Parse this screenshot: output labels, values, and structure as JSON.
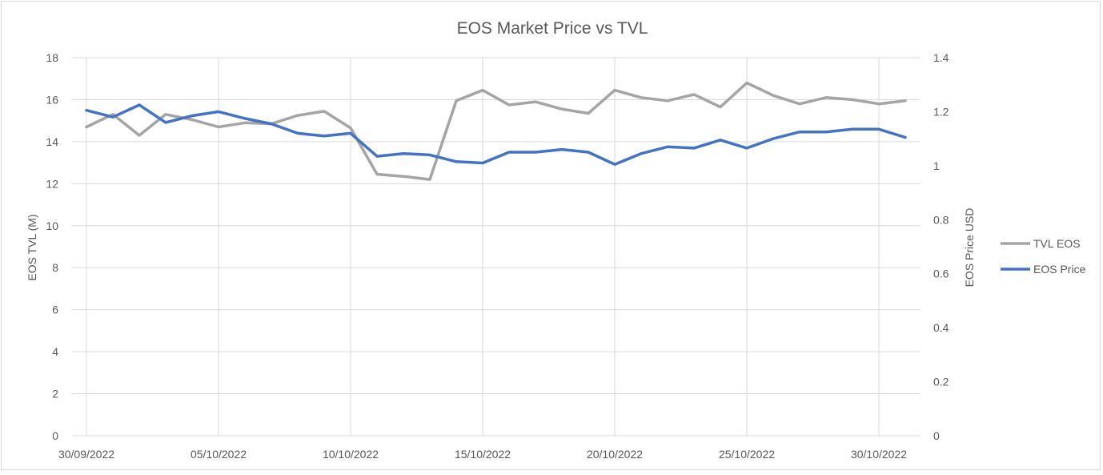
{
  "chart_data": {
    "type": "line",
    "title": "EOS Market Price vs TVL",
    "x_tick_labels": [
      "30/09/2022",
      "05/10/2022",
      "10/10/2022",
      "15/10/2022",
      "20/10/2022",
      "25/10/2022",
      "30/10/2022"
    ],
    "x_tick_dates": [
      "2022-09-30",
      "2022-10-05",
      "2022-10-10",
      "2022-10-15",
      "2022-10-20",
      "2022-10-25",
      "2022-10-30"
    ],
    "x_range": [
      "2022-09-30",
      "2022-10-31"
    ],
    "y_left": {
      "label": "EOS TVL (M)",
      "range": [
        0,
        18
      ],
      "ticks": [
        "0",
        "2",
        "4",
        "6",
        "8",
        "10",
        "12",
        "14",
        "16",
        "18"
      ]
    },
    "y_right": {
      "label": "EOS Price USD",
      "range": [
        0,
        1.4
      ],
      "ticks": [
        "0",
        "0.2",
        "0.4",
        "0.6",
        "0.8",
        "1",
        "1.2",
        "1.4"
      ]
    },
    "grid": true,
    "legend_position": "right",
    "series": [
      {
        "name": "TVL EOS",
        "axis": "left",
        "color": "#a5a5a5",
        "points": [
          {
            "date": "2022-09-30",
            "value": 14.7
          },
          {
            "date": "2022-10-01",
            "value": 15.3
          },
          {
            "date": "2022-10-02",
            "value": 14.3
          },
          {
            "date": "2022-10-03",
            "value": 15.3
          },
          {
            "date": "2022-10-04",
            "value": 15.05
          },
          {
            "date": "2022-10-05",
            "value": 14.7
          },
          {
            "date": "2022-10-06",
            "value": 14.9
          },
          {
            "date": "2022-10-07",
            "value": 14.85
          },
          {
            "date": "2022-10-08",
            "value": 15.25
          },
          {
            "date": "2022-10-09",
            "value": 15.45
          },
          {
            "date": "2022-10-10",
            "value": 14.65
          },
          {
            "date": "2022-10-11",
            "value": 12.45
          },
          {
            "date": "2022-10-12",
            "value": 12.35
          },
          {
            "date": "2022-10-13",
            "value": 12.2
          },
          {
            "date": "2022-10-14",
            "value": 15.95
          },
          {
            "date": "2022-10-15",
            "value": 16.45
          },
          {
            "date": "2022-10-16",
            "value": 15.75
          },
          {
            "date": "2022-10-17",
            "value": 15.9
          },
          {
            "date": "2022-10-18",
            "value": 15.55
          },
          {
            "date": "2022-10-19",
            "value": 15.35
          },
          {
            "date": "2022-10-20",
            "value": 16.45
          },
          {
            "date": "2022-10-21",
            "value": 16.1
          },
          {
            "date": "2022-10-22",
            "value": 15.95
          },
          {
            "date": "2022-10-23",
            "value": 16.25
          },
          {
            "date": "2022-10-24",
            "value": 15.65
          },
          {
            "date": "2022-10-25",
            "value": 16.8
          },
          {
            "date": "2022-10-26",
            "value": 16.2
          },
          {
            "date": "2022-10-27",
            "value": 15.8
          },
          {
            "date": "2022-10-28",
            "value": 16.1
          },
          {
            "date": "2022-10-29",
            "value": 16.0
          },
          {
            "date": "2022-10-30",
            "value": 15.8
          },
          {
            "date": "2022-10-31",
            "value": 15.95
          }
        ]
      },
      {
        "name": "EOS Price",
        "axis": "right",
        "color": "#4472c4",
        "points": [
          {
            "date": "2022-09-30",
            "value": 1.205
          },
          {
            "date": "2022-10-01",
            "value": 1.18
          },
          {
            "date": "2022-10-02",
            "value": 1.225
          },
          {
            "date": "2022-10-03",
            "value": 1.16
          },
          {
            "date": "2022-10-04",
            "value": 1.185
          },
          {
            "date": "2022-10-05",
            "value": 1.2
          },
          {
            "date": "2022-10-06",
            "value": 1.175
          },
          {
            "date": "2022-10-07",
            "value": 1.155
          },
          {
            "date": "2022-10-08",
            "value": 1.12
          },
          {
            "date": "2022-10-09",
            "value": 1.11
          },
          {
            "date": "2022-10-10",
            "value": 1.12
          },
          {
            "date": "2022-10-11",
            "value": 1.035
          },
          {
            "date": "2022-10-12",
            "value": 1.045
          },
          {
            "date": "2022-10-13",
            "value": 1.04
          },
          {
            "date": "2022-10-14",
            "value": 1.015
          },
          {
            "date": "2022-10-15",
            "value": 1.01
          },
          {
            "date": "2022-10-16",
            "value": 1.05
          },
          {
            "date": "2022-10-17",
            "value": 1.05
          },
          {
            "date": "2022-10-18",
            "value": 1.06
          },
          {
            "date": "2022-10-19",
            "value": 1.05
          },
          {
            "date": "2022-10-20",
            "value": 1.005
          },
          {
            "date": "2022-10-21",
            "value": 1.045
          },
          {
            "date": "2022-10-22",
            "value": 1.07
          },
          {
            "date": "2022-10-23",
            "value": 1.065
          },
          {
            "date": "2022-10-24",
            "value": 1.095
          },
          {
            "date": "2022-10-25",
            "value": 1.065
          },
          {
            "date": "2022-10-26",
            "value": 1.1
          },
          {
            "date": "2022-10-27",
            "value": 1.125
          },
          {
            "date": "2022-10-28",
            "value": 1.125
          },
          {
            "date": "2022-10-29",
            "value": 1.135
          },
          {
            "date": "2022-10-30",
            "value": 1.135
          },
          {
            "date": "2022-10-31",
            "value": 1.105
          }
        ]
      }
    ]
  }
}
